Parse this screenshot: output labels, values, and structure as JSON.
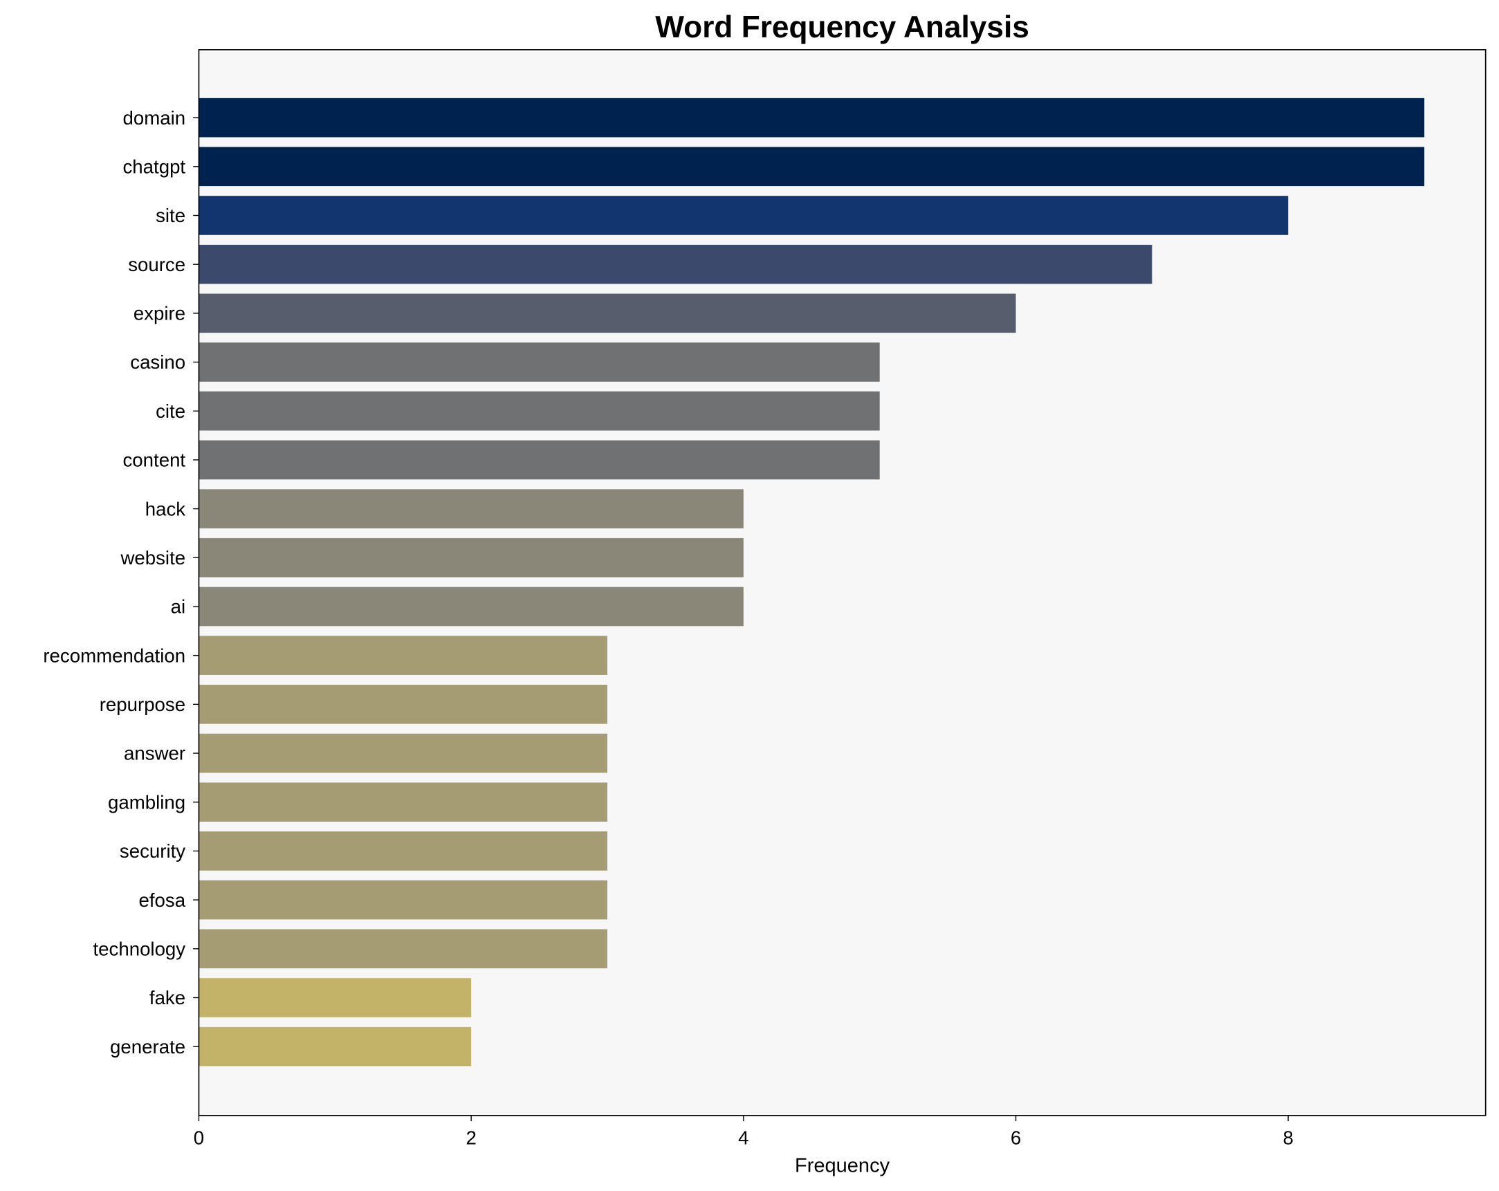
{
  "chart_data": {
    "type": "bar",
    "orientation": "horizontal",
    "title": "Word Frequency Analysis",
    "xlabel": "Frequency",
    "ylabel": "",
    "xlim": [
      0,
      9.45
    ],
    "xticks": [
      0,
      2,
      4,
      6,
      8
    ],
    "grid": false,
    "categories": [
      "domain",
      "chatgpt",
      "site",
      "source",
      "expire",
      "casino",
      "cite",
      "content",
      "hack",
      "website",
      "ai",
      "recommendation",
      "repurpose",
      "answer",
      "gambling",
      "security",
      "efosa",
      "technology",
      "fake",
      "generate"
    ],
    "values": [
      9,
      9,
      8,
      7,
      6,
      5,
      5,
      5,
      4,
      4,
      4,
      3,
      3,
      3,
      3,
      3,
      3,
      3,
      2,
      2
    ],
    "colors": [
      "#00224e",
      "#00224e",
      "#123570",
      "#3b496c",
      "#575d6d",
      "#707173",
      "#707173",
      "#707173",
      "#8a8678",
      "#8a8678",
      "#8a8678",
      "#a59c74",
      "#a59c74",
      "#a59c74",
      "#a59c74",
      "#a59c74",
      "#a59c74",
      "#a59c74",
      "#c3b369",
      "#c3b369"
    ],
    "plot_background": "#f7f7f7"
  }
}
